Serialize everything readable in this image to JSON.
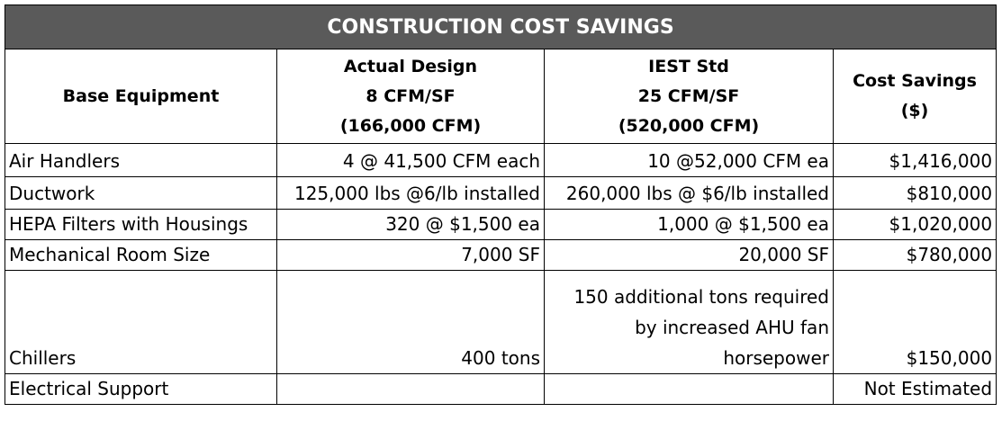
{
  "title": "CONSTRUCTION COST SAVINGS",
  "headers": {
    "base": "Base Equipment",
    "actual": [
      "Actual Design",
      "8 CFM/SF",
      "(166,000 CFM)"
    ],
    "iest": [
      "IEST Std",
      "25 CFM/SF",
      "(520,000 CFM)"
    ],
    "savings": "Cost Savings ($)"
  },
  "rows": [
    {
      "equipment": "Air Handlers",
      "actual": "4 @ 41,500 CFM each",
      "iest": "10 @52,000 CFM ea",
      "savings": "$1,416,000"
    },
    {
      "equipment": "Ductwork",
      "actual": "125,000 lbs @6/lb installed",
      "iest": "260,000 lbs @ $6/lb installed",
      "savings": "$810,000"
    },
    {
      "equipment": "HEPA Filters with Housings",
      "actual": "320 @ $1,500 ea",
      "iest": "1,000 @ $1,500 ea",
      "savings": "$1,020,000"
    },
    {
      "equipment": "Mechanical Room Size",
      "actual": "7,000 SF",
      "iest": "20,000 SF",
      "savings": "$780,000"
    },
    {
      "equipment": "Chillers",
      "actual": "400 tons",
      "iest": [
        "150 additional tons required",
        "by increased AHU fan",
        "horsepower"
      ],
      "savings": "$150,000"
    },
    {
      "equipment": "Electrical Support",
      "actual": "",
      "iest": "",
      "savings": "Not Estimated"
    }
  ]
}
